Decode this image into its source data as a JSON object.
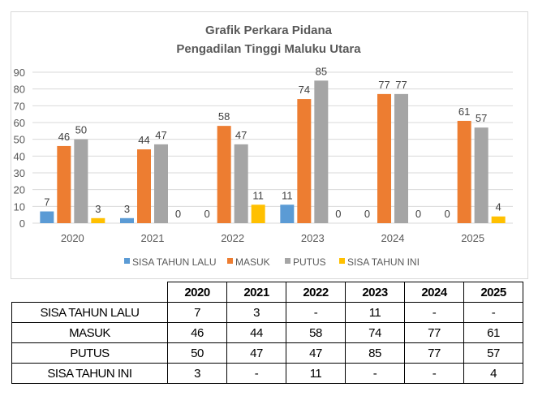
{
  "chart_data": {
    "type": "bar",
    "title": [
      "Grafik Perkara Pidana",
      "Pengadilan Tinggi Maluku Utara"
    ],
    "categories": [
      "2020",
      "2021",
      "2022",
      "2023",
      "2024",
      "2025"
    ],
    "series": [
      {
        "name": "SISA TAHUN LALU",
        "color": "#5b9bd5",
        "values": [
          7,
          3,
          0,
          11,
          0,
          0
        ]
      },
      {
        "name": "MASUK",
        "color": "#ed7d31",
        "values": [
          46,
          44,
          58,
          74,
          77,
          61
        ]
      },
      {
        "name": "PUTUS",
        "color": "#a5a5a5",
        "values": [
          50,
          47,
          47,
          85,
          77,
          57
        ]
      },
      {
        "name": "SISA TAHUN INI",
        "color": "#ffc000",
        "values": [
          3,
          0,
          11,
          0,
          0,
          4
        ]
      }
    ],
    "ylim": [
      0,
      90
    ],
    "yticks": [
      0,
      10,
      20,
      30,
      40,
      50,
      60,
      70,
      80,
      90
    ],
    "grid": true,
    "legend": "bottom",
    "xlabel": "",
    "ylabel": ""
  },
  "table": {
    "headers": [
      "2020",
      "2021",
      "2022",
      "2023",
      "2024",
      "2025"
    ],
    "rows": [
      {
        "label": "SISA TAHUN LALU",
        "cells": [
          "7",
          "3",
          "-",
          "11",
          "-",
          "-"
        ]
      },
      {
        "label": "MASUK",
        "cells": [
          "46",
          "44",
          "58",
          "74",
          "77",
          "61"
        ]
      },
      {
        "label": "PUTUS",
        "cells": [
          "50",
          "47",
          "47",
          "85",
          "77",
          "57"
        ]
      },
      {
        "label": "SISA TAHUN INI",
        "cells": [
          "3",
          "-",
          "11",
          "-",
          "-",
          "4"
        ]
      }
    ]
  }
}
